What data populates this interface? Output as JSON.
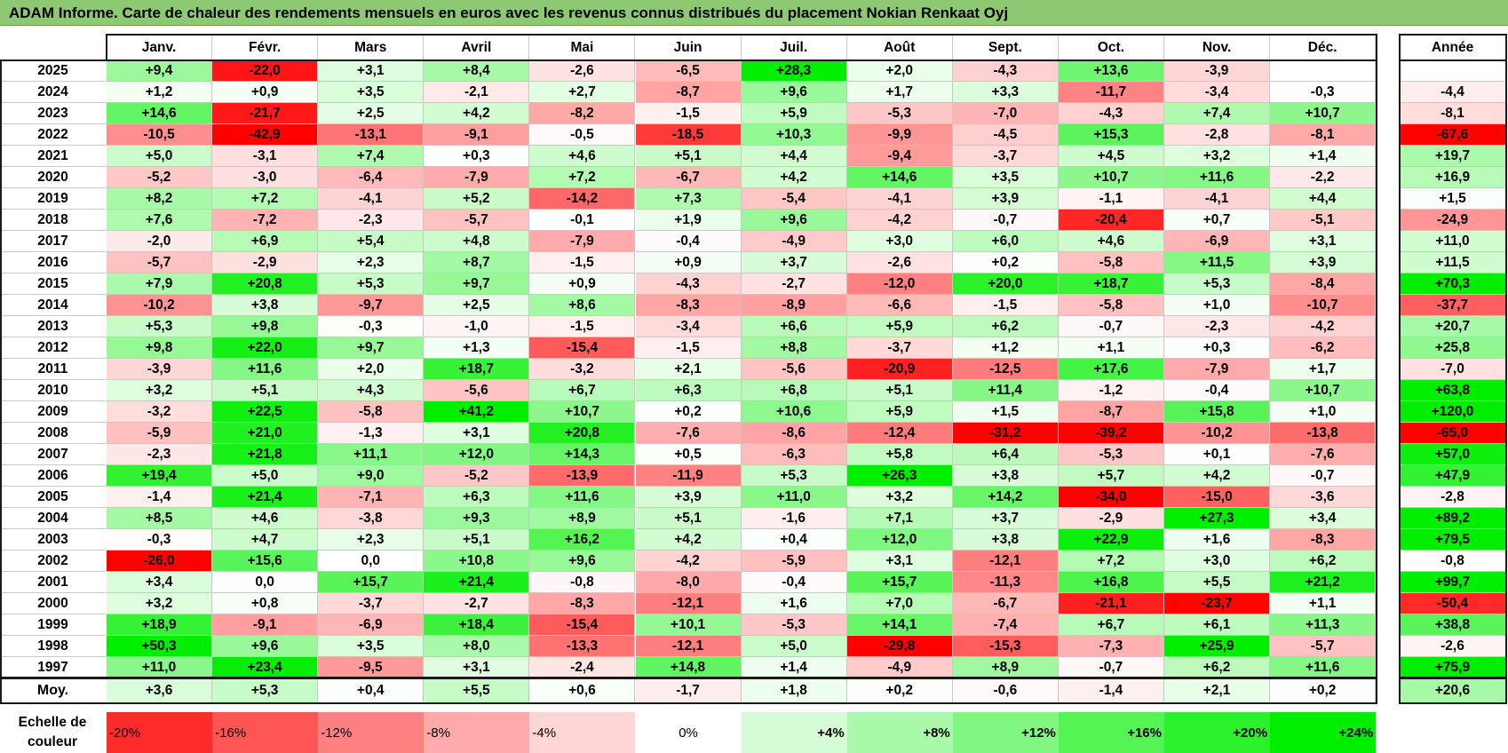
{
  "title": "ADAM Informe. Carte de chaleur des rendements mensuels en euros avec les revenus connus distribués du placement Nokian Renkaat Oyj",
  "colors": {
    "title_bg": "#8dc873",
    "negative_max": "#ff0000",
    "neutral": "#ffffff",
    "positive_max": "#00ee00"
  },
  "chart_data": {
    "type": "heatmap",
    "title": "ADAM Informe. Carte de chaleur des rendements mensuels en euros avec les revenus connus distribués du placement Nokian Renkaat Oyj",
    "columns": [
      "Janv.",
      "Févr.",
      "Mars",
      "Avril",
      "Mai",
      "Juin",
      "Juil.",
      "Août",
      "Sept.",
      "Oct.",
      "Nov.",
      "Déc."
    ],
    "annual_label": "Année",
    "rows": [
      {
        "year": "2025",
        "values": [
          "+9,4",
          "-22,0",
          "+3,1",
          "+8,4",
          "-2,6",
          "-6,5",
          "+28,3",
          "+2,0",
          "-4,3",
          "+13,6",
          "-3,9",
          ""
        ],
        "annual": ""
      },
      {
        "year": "2024",
        "values": [
          "+1,2",
          "+0,9",
          "+3,5",
          "-2,1",
          "+2,7",
          "-8,7",
          "+9,6",
          "+1,7",
          "+3,3",
          "-11,7",
          "-3,4",
          "-0,3"
        ],
        "annual": "-4,4"
      },
      {
        "year": "2023",
        "values": [
          "+14,6",
          "-21,7",
          "+2,5",
          "+4,2",
          "-8,2",
          "-1,5",
          "+5,9",
          "-5,3",
          "-7,0",
          "-4,3",
          "+7,4",
          "+10,7"
        ],
        "annual": "-8,1"
      },
      {
        "year": "2022",
        "values": [
          "-10,5",
          "-42,9",
          "-13,1",
          "-9,1",
          "-0,5",
          "-18,5",
          "+10,3",
          "-9,9",
          "-4,5",
          "+15,3",
          "-2,8",
          "-8,1"
        ],
        "annual": "-67,6"
      },
      {
        "year": "2021",
        "values": [
          "+5,0",
          "-3,1",
          "+7,4",
          "+0,3",
          "+4,6",
          "+5,1",
          "+4,4",
          "-9,4",
          "-3,7",
          "+4,5",
          "+3,2",
          "+1,4"
        ],
        "annual": "+19,7"
      },
      {
        "year": "2020",
        "values": [
          "-5,2",
          "-3,0",
          "-6,4",
          "-7,9",
          "+7,2",
          "-6,7",
          "+4,2",
          "+14,6",
          "+3,5",
          "+10,7",
          "+11,6",
          "-2,2"
        ],
        "annual": "+16,9"
      },
      {
        "year": "2019",
        "values": [
          "+8,2",
          "+7,2",
          "-4,1",
          "+5,2",
          "-14,2",
          "+7,3",
          "-5,4",
          "-4,1",
          "+3,9",
          "-1,1",
          "-4,1",
          "+4,4"
        ],
        "annual": "+1,5"
      },
      {
        "year": "2018",
        "values": [
          "+7,6",
          "-7,2",
          "-2,3",
          "-5,7",
          "-0,1",
          "+1,9",
          "+9,6",
          "-4,2",
          "-0,7",
          "-20,4",
          "+0,7",
          "-5,1"
        ],
        "annual": "-24,9"
      },
      {
        "year": "2017",
        "values": [
          "-2,0",
          "+6,9",
          "+5,4",
          "+4,8",
          "-7,9",
          "-0,4",
          "-4,9",
          "+3,0",
          "+6,0",
          "+4,6",
          "-6,9",
          "+3,1"
        ],
        "annual": "+11,0"
      },
      {
        "year": "2016",
        "values": [
          "-5,7",
          "-2,9",
          "+2,3",
          "+8,7",
          "-1,5",
          "+0,9",
          "+3,7",
          "-2,6",
          "+0,2",
          "-5,8",
          "+11,5",
          "+3,9"
        ],
        "annual": "+11,5"
      },
      {
        "year": "2015",
        "values": [
          "+7,9",
          "+20,8",
          "+5,3",
          "+9,7",
          "+0,9",
          "-4,3",
          "-2,7",
          "-12,0",
          "+20,0",
          "+18,7",
          "+5,3",
          "-8,4"
        ],
        "annual": "+70,3"
      },
      {
        "year": "2014",
        "values": [
          "-10,2",
          "+3,8",
          "-9,7",
          "+2,5",
          "+8,6",
          "-8,3",
          "-8,9",
          "-6,6",
          "-1,5",
          "-5,8",
          "+1,0",
          "-10,7"
        ],
        "annual": "-37,7"
      },
      {
        "year": "2013",
        "values": [
          "+5,3",
          "+9,8",
          "-0,3",
          "-1,0",
          "-1,5",
          "-3,4",
          "+6,6",
          "+5,9",
          "+6,2",
          "-0,7",
          "-2,3",
          "-4,2"
        ],
        "annual": "+20,7"
      },
      {
        "year": "2012",
        "values": [
          "+9,8",
          "+22,0",
          "+9,7",
          "+1,3",
          "-15,4",
          "-1,5",
          "+8,8",
          "-3,7",
          "+1,2",
          "+1,1",
          "+0,3",
          "-6,2"
        ],
        "annual": "+25,8"
      },
      {
        "year": "2011",
        "values": [
          "-3,9",
          "+11,6",
          "+2,0",
          "+18,7",
          "-3,2",
          "+2,1",
          "-5,6",
          "-20,9",
          "-12,5",
          "+17,6",
          "-7,9",
          "+1,7"
        ],
        "annual": "-7,0"
      },
      {
        "year": "2010",
        "values": [
          "+3,2",
          "+5,1",
          "+4,3",
          "-5,6",
          "+6,7",
          "+6,3",
          "+6,8",
          "+5,1",
          "+11,4",
          "-1,2",
          "-0,4",
          "+10,7"
        ],
        "annual": "+63,8"
      },
      {
        "year": "2009",
        "values": [
          "-3,2",
          "+22,5",
          "-5,8",
          "+41,2",
          "+10,7",
          "+0,2",
          "+10,6",
          "+5,9",
          "+1,5",
          "-8,7",
          "+15,8",
          "+1,0"
        ],
        "annual": "+120,0"
      },
      {
        "year": "2008",
        "values": [
          "-5,9",
          "+21,0",
          "-1,3",
          "+3,1",
          "+20,8",
          "-7,6",
          "-8,6",
          "-12,4",
          "-31,2",
          "-39,2",
          "-10,2",
          "-13,8"
        ],
        "annual": "-65,0"
      },
      {
        "year": "2007",
        "values": [
          "-2,3",
          "+21,8",
          "+11,1",
          "+12,0",
          "+14,3",
          "+0,5",
          "-6,3",
          "+5,8",
          "+6,4",
          "-5,3",
          "+0,1",
          "-7,6"
        ],
        "annual": "+57,0"
      },
      {
        "year": "2006",
        "values": [
          "+19,4",
          "+5,0",
          "+9,0",
          "-5,2",
          "-13,9",
          "-11,9",
          "+5,3",
          "+26,3",
          "+3,8",
          "+5,7",
          "+4,2",
          "-0,7"
        ],
        "annual": "+47,9"
      },
      {
        "year": "2005",
        "values": [
          "-1,4",
          "+21,4",
          "-7,1",
          "+6,3",
          "+11,6",
          "+3,9",
          "+11,0",
          "+3,2",
          "+14,2",
          "-34,0",
          "-15,0",
          "-3,6"
        ],
        "annual": "-2,8"
      },
      {
        "year": "2004",
        "values": [
          "+8,5",
          "+4,6",
          "-3,8",
          "+9,3",
          "+8,9",
          "+5,1",
          "-1,6",
          "+7,1",
          "+3,7",
          "-2,9",
          "+27,3",
          "+3,4"
        ],
        "annual": "+89,2"
      },
      {
        "year": "2003",
        "values": [
          "-0,3",
          "+4,7",
          "+2,3",
          "+5,1",
          "+16,2",
          "+4,2",
          "+0,4",
          "+12,0",
          "+3,8",
          "+22,9",
          "+1,6",
          "-8,3"
        ],
        "annual": "+79,5"
      },
      {
        "year": "2002",
        "values": [
          "-26,0",
          "+15,6",
          "0,0",
          "+10,8",
          "+9,6",
          "-4,2",
          "-5,9",
          "+3,1",
          "-12,1",
          "+7,2",
          "+3,0",
          "+6,2"
        ],
        "annual": "-0,8"
      },
      {
        "year": "2001",
        "values": [
          "+3,4",
          "0,0",
          "+15,7",
          "+21,4",
          "-0,8",
          "-8,0",
          "-0,4",
          "+15,7",
          "-11,3",
          "+16,8",
          "+5,5",
          "+21,2"
        ],
        "annual": "+99,7"
      },
      {
        "year": "2000",
        "values": [
          "+3,2",
          "+0,8",
          "-3,7",
          "-2,7",
          "-8,3",
          "-12,1",
          "+1,6",
          "+7,0",
          "-6,7",
          "-21,1",
          "-23,7",
          "+1,1"
        ],
        "annual": "-50,4"
      },
      {
        "year": "1999",
        "values": [
          "+18,9",
          "-9,1",
          "-6,9",
          "+18,4",
          "-15,4",
          "+10,1",
          "-5,3",
          "+14,1",
          "-7,4",
          "+6,7",
          "+6,1",
          "+11,3"
        ],
        "annual": "+38,8"
      },
      {
        "year": "1998",
        "values": [
          "+50,3",
          "+9,6",
          "+3,5",
          "+8,0",
          "-13,3",
          "-12,1",
          "+5,0",
          "-29,8",
          "-15,3",
          "-7,3",
          "+25,9",
          "-5,7"
        ],
        "annual": "-2,6"
      },
      {
        "year": "1997",
        "values": [
          "+11,0",
          "+23,4",
          "-9,5",
          "+3,1",
          "-2,4",
          "+14,8",
          "+1,4",
          "-4,9",
          "+8,9",
          "-0,7",
          "+6,2",
          "+11,6"
        ],
        "annual": "+75,9"
      }
    ],
    "average": {
      "label": "Moy.",
      "values": [
        "+3,6",
        "+5,3",
        "+0,4",
        "+5,5",
        "+0,6",
        "-1,7",
        "+1,8",
        "+0,2",
        "-0,6",
        "-1,4",
        "+2,1",
        "+0,2"
      ],
      "annual": "+20,6"
    },
    "scale": {
      "label_line1": "Echelle de",
      "label_line2": "couleur",
      "steps": [
        "-20%",
        "-16%",
        "-12%",
        "-8%",
        "-4%",
        "0%",
        "+4%",
        "+8%",
        "+12%",
        "+16%",
        "+20%",
        "+24%"
      ]
    }
  }
}
